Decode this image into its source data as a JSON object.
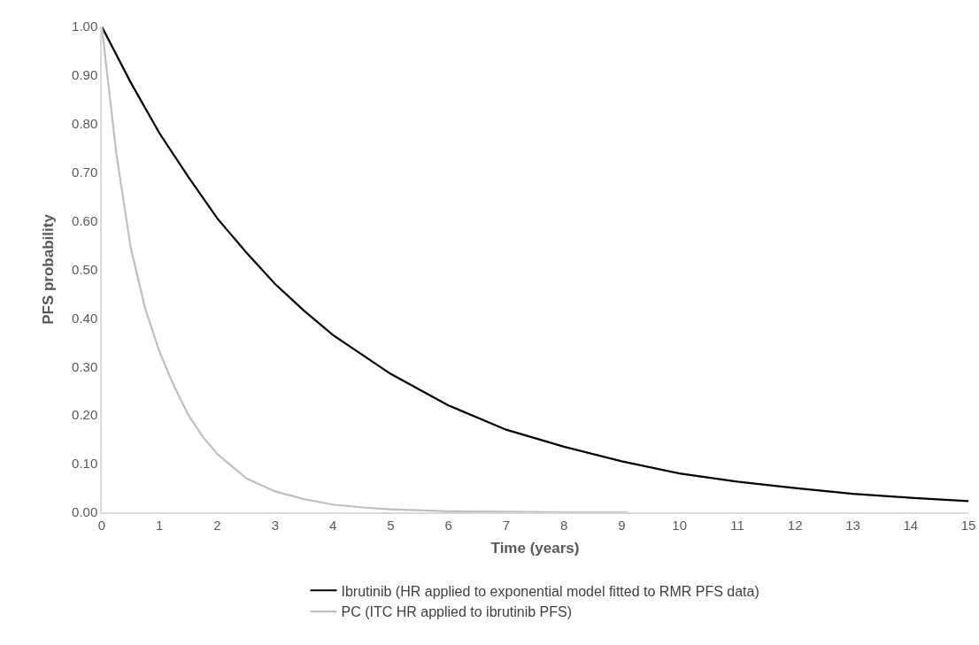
{
  "chart_data": {
    "type": "line",
    "xlabel": "Time (years)",
    "ylabel": "PFS probability",
    "xlim": [
      0,
      15
    ],
    "xticks": [
      0,
      1,
      2,
      3,
      4,
      5,
      6,
      7,
      8,
      9,
      10,
      11,
      12,
      13,
      14,
      15
    ],
    "ylim": [
      0,
      1
    ],
    "yticks": [
      {
        "value": 0,
        "label": "0.00"
      },
      {
        "value": 0.1,
        "label": "0.10"
      },
      {
        "value": 0.2,
        "label": "0.20"
      },
      {
        "value": 0.3,
        "label": "0.30"
      },
      {
        "value": 0.4,
        "label": "0.40"
      },
      {
        "value": 0.5,
        "label": "0.50"
      },
      {
        "value": 0.6,
        "label": "0.60"
      },
      {
        "value": 0.7,
        "label": "0.70"
      },
      {
        "value": 0.8,
        "label": "0.80"
      },
      {
        "value": 0.9,
        "label": "0.90"
      },
      {
        "value": 1,
        "label": "1.00"
      }
    ],
    "grid": false,
    "legend": "bottom",
    "marker": "none",
    "line_style": "solid",
    "series": [
      {
        "name": "Ibrutinib (HR applied to exponential model fitted to RMR PFS data)",
        "color": "#000000",
        "x": [
          0,
          0.5,
          1,
          1.5,
          2,
          2.5,
          3,
          3.5,
          4,
          4.5,
          5,
          6,
          7,
          8,
          9,
          10,
          11,
          12,
          13,
          14,
          15
        ],
        "values": [
          1.0,
          0.885,
          0.78,
          0.69,
          0.605,
          0.535,
          0.47,
          0.415,
          0.365,
          0.325,
          0.285,
          0.22,
          0.17,
          0.135,
          0.105,
          0.08,
          0.063,
          0.05,
          0.038,
          0.03,
          0.023
        ]
      },
      {
        "name": "PC (ITC HR applied to ibrutinib PFS)",
        "color": "#bfbfbf",
        "x": [
          0,
          0.25,
          0.5,
          0.75,
          1,
          1.25,
          1.5,
          1.75,
          2,
          2.5,
          3,
          3.5,
          4,
          4.5,
          5,
          6,
          7,
          8,
          9.1
        ],
        "values": [
          1.0,
          0.74,
          0.545,
          0.42,
          0.33,
          0.26,
          0.2,
          0.155,
          0.12,
          0.07,
          0.043,
          0.027,
          0.016,
          0.01,
          0.006,
          0.002,
          0.001,
          0,
          0
        ]
      }
    ]
  }
}
